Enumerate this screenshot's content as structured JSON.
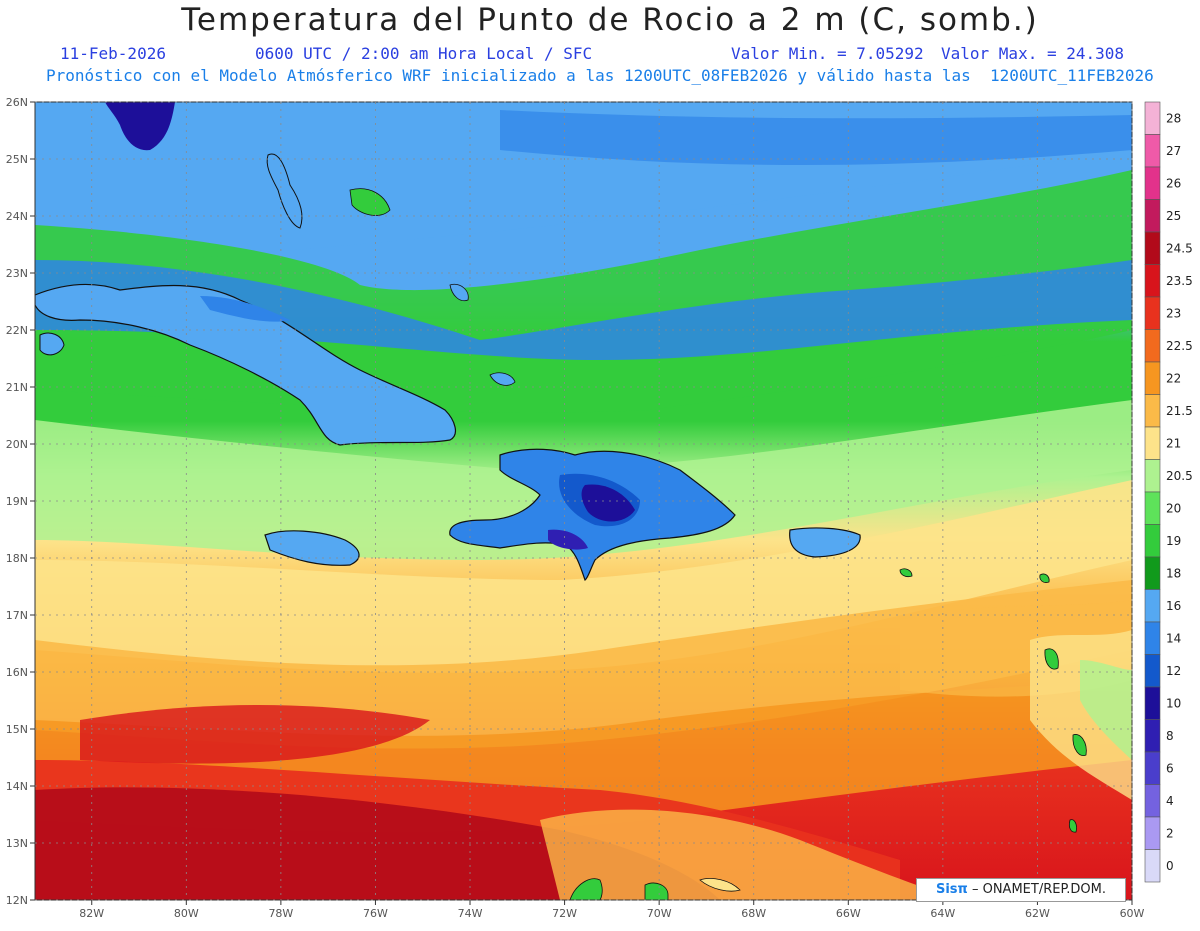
{
  "header": {
    "title": "Temperatura del Punto de Rocio a 2 m (C, somb.)",
    "date": "11-Feb-2026",
    "time": "0600 UTC / 2:00 am Hora Local / SFC",
    "min": "Valor Min. = 7.05292",
    "max": "Valor Max. = 24.308",
    "model": "Pronóstico con el Modelo Atmósferico WRF inicializado a las 1200UTC_08FEB2026 y válido hasta las  1200UTC_11FEB2026"
  },
  "map": {
    "lat_labels": [
      "26N",
      "25N",
      "24N",
      "23N",
      "22N",
      "21N",
      "20N",
      "19N",
      "18N",
      "17N",
      "16N",
      "15N",
      "14N",
      "13N",
      "12N"
    ],
    "lon_labels": [
      "82W",
      "80W",
      "78W",
      "76W",
      "74W",
      "72W",
      "70W",
      "68W",
      "66W",
      "64W",
      "62W",
      "60W"
    ],
    "lat_range": [
      12,
      26
    ],
    "lon_range": [
      -83.2,
      -60
    ]
  },
  "legend": {
    "levels": [
      {
        "label": "28",
        "color": "#f4b2d6"
      },
      {
        "label": "27",
        "color": "#ef5aa8"
      },
      {
        "label": "26",
        "color": "#e2328b"
      },
      {
        "label": "25",
        "color": "#c21a5d"
      },
      {
        "label": "24.5",
        "color": "#b20a1a"
      },
      {
        "label": "23.5",
        "color": "#d8141c"
      },
      {
        "label": "23",
        "color": "#e8321e"
      },
      {
        "label": "22.5",
        "color": "#f26a1e"
      },
      {
        "label": "22",
        "color": "#f69620"
      },
      {
        "label": "21.5",
        "color": "#fbba48"
      },
      {
        "label": "21",
        "color": "#fde38a"
      },
      {
        "label": "20.5",
        "color": "#aef290"
      },
      {
        "label": "20",
        "color": "#5ee25a"
      },
      {
        "label": "19",
        "color": "#33cc3c"
      },
      {
        "label": "18",
        "color": "#119a1c"
      },
      {
        "label": "16",
        "color": "#55a8f2"
      },
      {
        "label": "14",
        "color": "#2f84e8"
      },
      {
        "label": "12",
        "color": "#1359cc"
      },
      {
        "label": "10",
        "color": "#1d0f99"
      },
      {
        "label": "8",
        "color": "#2f1fb2"
      },
      {
        "label": "6",
        "color": "#4a3ecc"
      },
      {
        "label": "4",
        "color": "#7462e0"
      },
      {
        "label": "2",
        "color": "#aa99f2"
      },
      {
        "label": "0",
        "color": "#d9d9f8"
      }
    ]
  },
  "credit": {
    "logo": "Sisπ",
    "text": "– ONAMET/REP.DOM."
  }
}
